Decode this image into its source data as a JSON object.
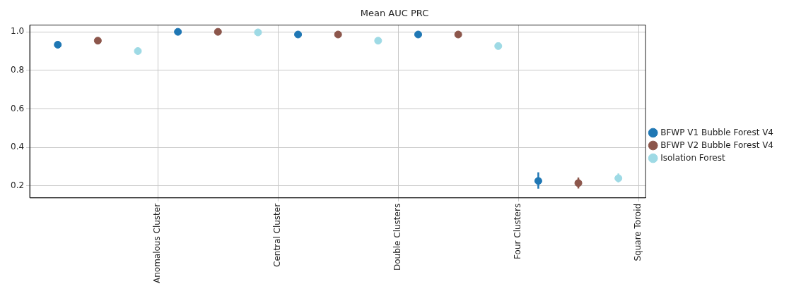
{
  "chart_data": {
    "type": "scatter",
    "title": "Mean AUC PRC",
    "marker": "circle",
    "grid": true,
    "legend": "right",
    "categories": [
      null,
      null,
      null,
      null,
      null,
      "Anomalous Cluster",
      null,
      null,
      null,
      null,
      null,
      "Central Cluster",
      null,
      null,
      null,
      null,
      null,
      "Double Clusters",
      null,
      null,
      null,
      null,
      null,
      "Four Clusters",
      null,
      null,
      null,
      null,
      null,
      "Square Toroid"
    ],
    "ylim": [
      0.137,
      1.035
    ],
    "yticks": [
      {
        "value": 0.2,
        "label": "0.2"
      },
      {
        "value": 0.4,
        "label": "0.4"
      },
      {
        "value": 0.6,
        "label": "0.6"
      },
      {
        "value": 0.8,
        "label": "0.8"
      },
      {
        "value": 1.0,
        "label": "1.0"
      }
    ],
    "series": [
      {
        "name": "BFWP V1 Bubble Forest V4",
        "color": "#1f77b4",
        "values": [
          0.933,
          null,
          null,
          null,
          null,
          null,
          1.0,
          null,
          null,
          null,
          null,
          null,
          0.986,
          null,
          null,
          null,
          null,
          null,
          0.986,
          null,
          null,
          null,
          null,
          null,
          0.225,
          null,
          null,
          null,
          null,
          null
        ],
        "errors": [
          null,
          null,
          null,
          null,
          null,
          null,
          null,
          null,
          null,
          null,
          null,
          null,
          null,
          null,
          null,
          null,
          null,
          null,
          null,
          null,
          null,
          null,
          null,
          null,
          [
            0.185,
            0.27
          ],
          null,
          null,
          null,
          null,
          null
        ]
      },
      {
        "name": "BFWP V2 Bubble Forest V4",
        "color": "#8c564b",
        "values": [
          null,
          null,
          0.954,
          null,
          null,
          null,
          null,
          null,
          1.0,
          null,
          null,
          null,
          null,
          null,
          0.986,
          null,
          null,
          null,
          null,
          null,
          0.986,
          null,
          null,
          null,
          null,
          null,
          0.214,
          null,
          null,
          null
        ],
        "errors": [
          null,
          null,
          null,
          null,
          null,
          null,
          null,
          null,
          null,
          null,
          null,
          null,
          null,
          null,
          null,
          null,
          null,
          null,
          null,
          null,
          null,
          null,
          null,
          null,
          null,
          null,
          [
            0.186,
            0.243
          ],
          null,
          null,
          null
        ]
      },
      {
        "name": "Isolation Forest",
        "color": "#9edae5",
        "values": [
          null,
          null,
          null,
          null,
          0.9,
          null,
          null,
          null,
          null,
          null,
          0.997,
          null,
          null,
          null,
          null,
          null,
          0.954,
          null,
          null,
          null,
          null,
          null,
          0.926,
          null,
          null,
          null,
          null,
          null,
          0.239,
          null
        ],
        "errors": [
          null,
          null,
          null,
          null,
          [
            0.89,
            0.91
          ],
          null,
          null,
          null,
          null,
          null,
          null,
          null,
          null,
          null,
          null,
          null,
          null,
          null,
          null,
          null,
          null,
          null,
          null,
          null,
          null,
          null,
          null,
          null,
          [
            0.218,
            0.264
          ],
          null
        ]
      }
    ]
  }
}
